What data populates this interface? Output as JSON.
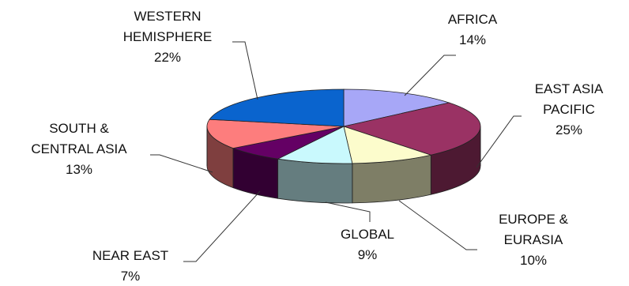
{
  "chart_data": {
    "type": "pie",
    "style": "3d-exploded-pie",
    "title": "",
    "slices": [
      {
        "label": [
          "AFRICA"
        ],
        "value": 14,
        "value_label": "14%",
        "color": "#A7A7F7"
      },
      {
        "label": [
          "EAST ASIA",
          "PACIFIC"
        ],
        "value": 25,
        "value_label": "25%",
        "color": "#9A3264"
      },
      {
        "label": [
          "EUROPE &",
          "EURASIA"
        ],
        "value": 10,
        "value_label": "10%",
        "color": "#FCFCCC"
      },
      {
        "label": [
          "GLOBAL"
        ],
        "value": 9,
        "value_label": "9%",
        "color": "#C9F9FD"
      },
      {
        "label": [
          "NEAR EAST"
        ],
        "value": 7,
        "value_label": "7%",
        "color": "#640064"
      },
      {
        "label": [
          "SOUTH &",
          "CENTRAL ASIA"
        ],
        "value": 13,
        "value_label": "13%",
        "color": "#FD7D7D"
      },
      {
        "label": [
          "WESTERN",
          "HEMISPHERE"
        ],
        "value": 22,
        "value_label": "22%",
        "color": "#0A64CE"
      }
    ]
  }
}
